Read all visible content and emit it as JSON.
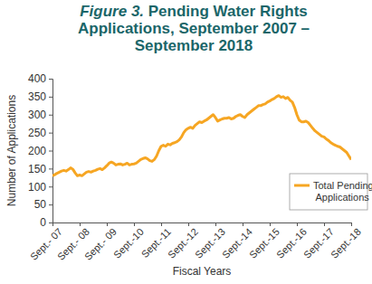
{
  "chart_data": {
    "type": "line",
    "title": "Figure 3. Pending Water Rights Applications, September 2007 – September 2018",
    "x_label": "Fiscal Years",
    "y_label": "Number of Applications",
    "categories": [
      "Sept.- 07",
      null,
      null,
      null,
      null,
      null,
      null,
      null,
      null,
      null,
      null,
      null,
      "Sept.- 08",
      null,
      null,
      null,
      null,
      null,
      null,
      null,
      null,
      null,
      null,
      null,
      "Sept.- 09",
      null,
      null,
      null,
      null,
      null,
      null,
      null,
      null,
      null,
      null,
      null,
      "Sept.-10",
      null,
      null,
      null,
      null,
      null,
      null,
      null,
      null,
      null,
      null,
      null,
      "Sept.-11",
      null,
      null,
      null,
      null,
      null,
      null,
      null,
      null,
      null,
      null,
      null,
      "Sept.-12",
      null,
      null,
      null,
      null,
      null,
      null,
      null,
      null,
      null,
      null,
      null,
      "Sept.-13",
      null,
      null,
      null,
      null,
      null,
      null,
      null,
      null,
      null,
      null,
      null,
      "Sept.-14",
      null,
      null,
      null,
      null,
      null,
      null,
      null,
      null,
      null,
      null,
      null,
      "Sept.-15",
      null,
      null,
      null,
      null,
      null,
      null,
      null,
      null,
      null,
      null,
      null,
      "Sept.-16",
      null,
      null,
      null,
      null,
      null,
      null,
      null,
      null,
      null,
      null,
      null,
      "Sept.-17",
      null,
      null,
      null,
      null,
      null,
      null,
      null,
      null,
      null,
      null,
      null,
      "Sept.-18"
    ],
    "series": [
      {
        "name": "Total Pending Applications",
        "color": "#f6a623",
        "values": [
          130,
          133,
          137,
          140,
          143,
          145,
          143,
          147,
          152,
          148,
          138,
          130,
          132,
          130,
          135,
          140,
          142,
          140,
          143,
          145,
          148,
          150,
          147,
          152,
          158,
          165,
          168,
          165,
          160,
          162,
          163,
          160,
          162,
          165,
          160,
          162,
          163,
          165,
          170,
          175,
          178,
          180,
          177,
          172,
          170,
          175,
          185,
          200,
          212,
          215,
          212,
          218,
          216,
          220,
          222,
          225,
          230,
          238,
          250,
          258,
          262,
          265,
          262,
          270,
          275,
          280,
          278,
          282,
          285,
          290,
          295,
          300,
          292,
          282,
          285,
          288,
          290,
          290,
          292,
          288,
          290,
          295,
          298,
          300,
          295,
          292,
          300,
          305,
          310,
          315,
          320,
          325,
          325,
          328,
          330,
          335,
          338,
          342,
          345,
          350,
          353,
          348,
          350,
          345,
          348,
          340,
          335,
          320,
          300,
          285,
          280,
          280,
          282,
          278,
          270,
          262,
          255,
          250,
          245,
          240,
          238,
          232,
          228,
          222,
          218,
          215,
          212,
          210,
          205,
          200,
          195,
          185,
          175
        ]
      }
    ],
    "ylim": [
      0,
      400
    ],
    "yticks": [
      0,
      50,
      100,
      150,
      200,
      250,
      300,
      350,
      400
    ],
    "grid": false,
    "legend": "lower right"
  }
}
